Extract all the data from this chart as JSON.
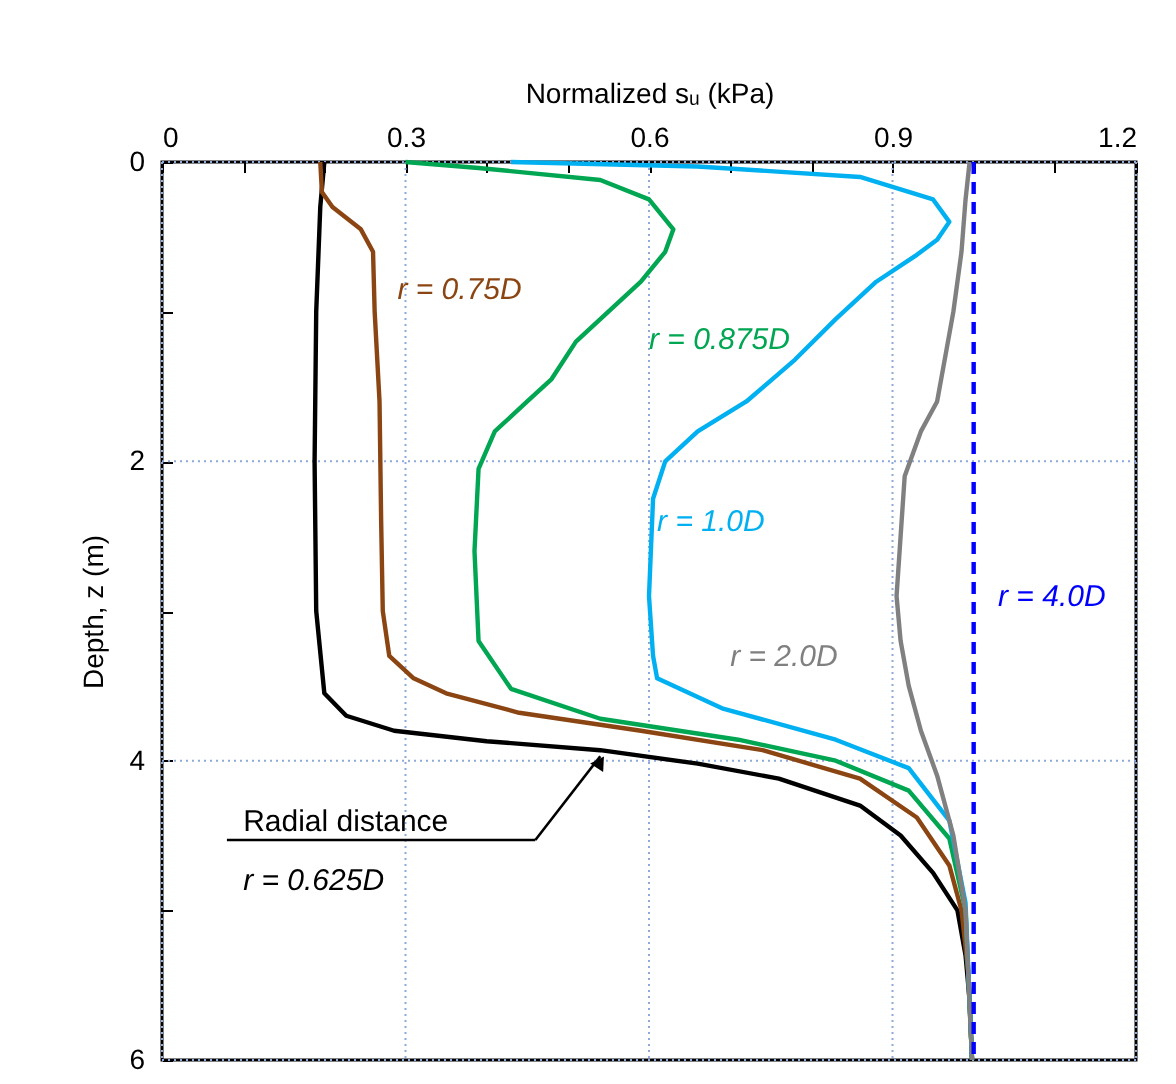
{
  "chart_data": {
    "type": "line",
    "xlabel": "Normalized sᵤ (kPa)",
    "ylabel": "Depth, z (m)",
    "xlim": [
      0,
      1.2
    ],
    "xticks": [
      0,
      {
        "value": 0.1,
        "label": null
      },
      {
        "value": 0.2,
        "label": null
      },
      0.3,
      {
        "value": 0.4,
        "label": null
      },
      {
        "value": 0.5,
        "label": null
      },
      0.6,
      {
        "value": 0.7,
        "label": null
      },
      {
        "value": 0.8,
        "label": null
      },
      0.9,
      {
        "value": 1.0,
        "label": null
      },
      {
        "value": 1.1,
        "label": null
      },
      1.2
    ],
    "ylim": [
      6,
      0
    ],
    "yticks": [
      0,
      {
        "value": 1,
        "label": null
      },
      2,
      {
        "value": 3,
        "label": null
      },
      4,
      {
        "value": 5,
        "label": null
      },
      6
    ],
    "grid": true,
    "marker": "none",
    "line_style": "solid",
    "annotations": [
      "Radial distance"
    ],
    "series": [
      {
        "name": "r = 0.625D",
        "color": "#000000",
        "x": [
          0.2,
          0.195,
          0.19,
          0.188,
          0.19,
          0.2,
          0.227,
          0.286,
          0.4,
          0.54,
          0.66,
          0.76,
          0.86,
          0.91,
          0.95,
          0.98,
          0.99,
          0.995,
          0.998
        ],
        "values": [
          0,
          0.3,
          1.0,
          2.0,
          3.0,
          3.55,
          3.7,
          3.8,
          3.87,
          3.93,
          4.02,
          4.12,
          4.3,
          4.5,
          4.75,
          5.0,
          5.3,
          5.6,
          6.0
        ]
      },
      {
        "name": "r = 0.75D",
        "color": "#8b4513",
        "x": [
          0.195,
          0.197,
          0.21,
          0.245,
          0.26,
          0.262,
          0.268,
          0.27,
          0.272,
          0.28,
          0.31,
          0.35,
          0.44,
          0.59,
          0.74,
          0.86,
          0.93,
          0.97,
          0.985,
          0.993,
          0.998
        ],
        "values": [
          0,
          0.2,
          0.3,
          0.45,
          0.6,
          1.0,
          1.6,
          2.4,
          3.0,
          3.3,
          3.45,
          3.55,
          3.68,
          3.8,
          3.93,
          4.12,
          4.38,
          4.7,
          5.0,
          5.4,
          6.0
        ]
      },
      {
        "name": "r = 0.875D",
        "color": "#00a651",
        "x": [
          0.3,
          0.39,
          0.54,
          0.6,
          0.63,
          0.62,
          0.59,
          0.55,
          0.51,
          0.48,
          0.45,
          0.41,
          0.39,
          0.385,
          0.39,
          0.43,
          0.54,
          0.71,
          0.83,
          0.92,
          0.97,
          0.99,
          0.998
        ],
        "values": [
          0,
          0.04,
          0.12,
          0.25,
          0.45,
          0.6,
          0.8,
          1.0,
          1.2,
          1.45,
          1.6,
          1.8,
          2.05,
          2.6,
          3.2,
          3.52,
          3.72,
          3.86,
          4.0,
          4.2,
          4.52,
          5.0,
          6.0
        ]
      },
      {
        "name": "r = 1.0D",
        "color": "#00b0f0",
        "x": [
          0.43,
          0.66,
          0.86,
          0.95,
          0.97,
          0.955,
          0.93,
          0.88,
          0.83,
          0.78,
          0.72,
          0.66,
          0.62,
          0.605,
          0.6,
          0.605,
          0.61,
          0.69,
          0.83,
          0.92,
          0.97,
          0.99,
          0.998
        ],
        "values": [
          0,
          0.03,
          0.1,
          0.25,
          0.4,
          0.52,
          0.62,
          0.8,
          1.05,
          1.32,
          1.6,
          1.8,
          2.0,
          2.25,
          2.9,
          3.3,
          3.45,
          3.65,
          3.86,
          4.05,
          4.4,
          4.95,
          6.0
        ]
      },
      {
        "name": "r = 2.0D",
        "color": "#808080",
        "x": [
          0.995,
          0.99,
          0.985,
          0.975,
          0.965,
          0.955,
          0.935,
          0.915,
          0.91,
          0.905,
          0.91,
          0.92,
          0.935,
          0.955,
          0.975,
          0.99,
          0.998
        ],
        "values": [
          0,
          0.25,
          0.6,
          1.0,
          1.3,
          1.6,
          1.8,
          2.1,
          2.5,
          2.9,
          3.2,
          3.5,
          3.8,
          4.1,
          4.5,
          5.0,
          6.0
        ]
      },
      {
        "name": "r = 4.0D",
        "color": "#0000ff",
        "line_style": "dashed",
        "x": [
          1.0,
          1.0
        ],
        "values": [
          0,
          6
        ]
      }
    ]
  }
}
